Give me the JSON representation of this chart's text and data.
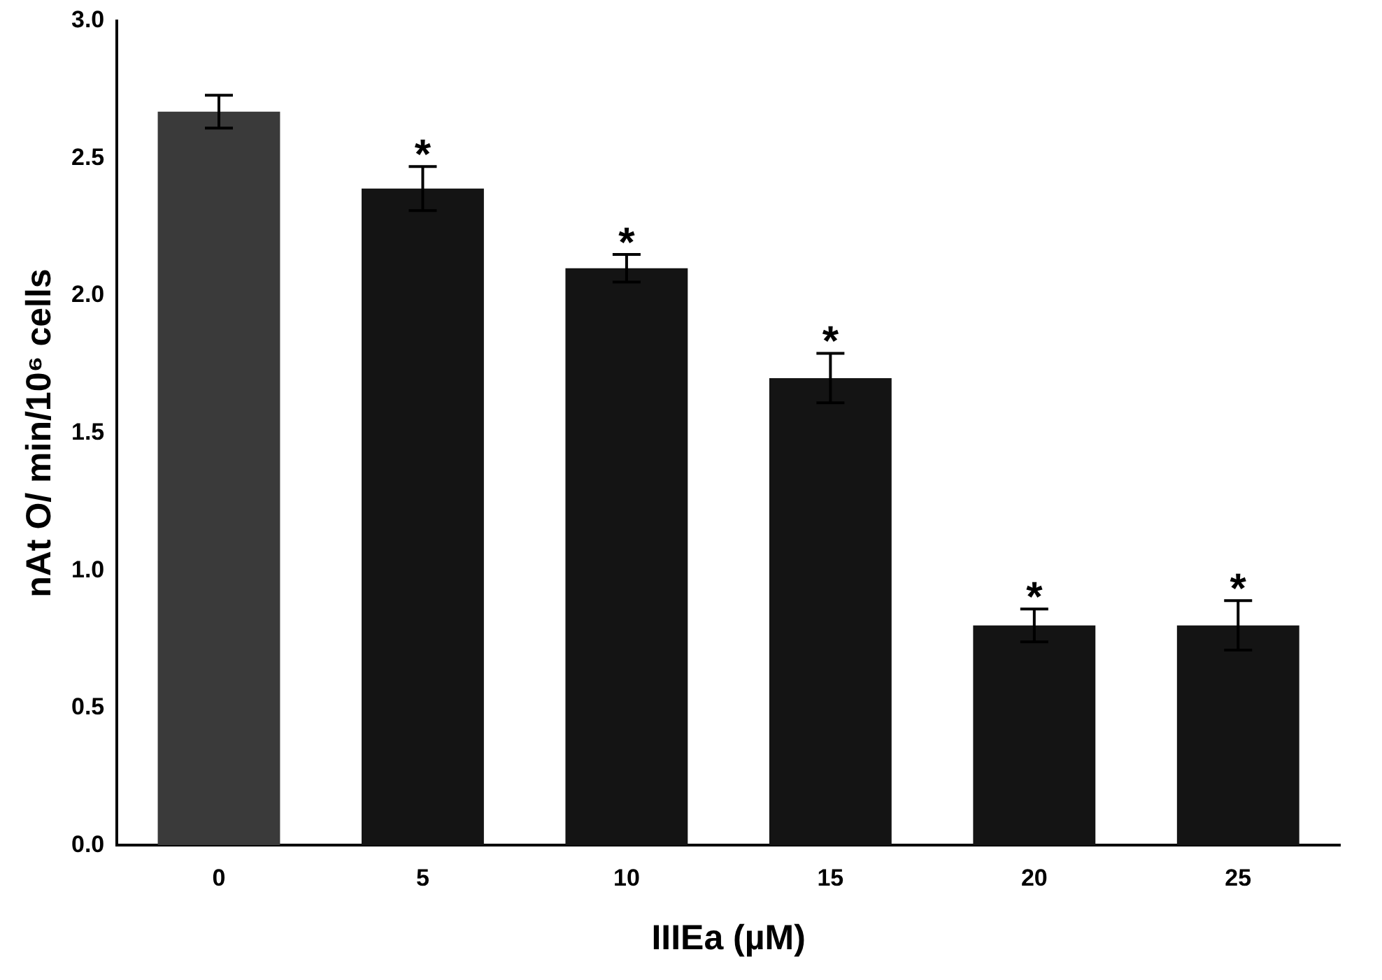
{
  "chart_data": {
    "type": "bar",
    "xlabel": "IIIEa (µM)",
    "ylabel": "nAt O/ min/10⁶ cells",
    "categories": [
      "0",
      "5",
      "10",
      "15",
      "20",
      "25"
    ],
    "values": [
      2.67,
      2.39,
      2.1,
      1.7,
      0.8,
      0.8
    ],
    "colors": [
      "#3a3a3a",
      "#141414",
      "#141414",
      "#141414",
      "#141414",
      "#141414"
    ],
    "errors": [
      0.06,
      0.08,
      0.05,
      0.09,
      0.06,
      0.09
    ],
    "ylim": [
      0,
      3
    ],
    "yticks": [
      {
        "value": 0,
        "label": "0.0"
      },
      {
        "value": 0.5,
        "label": "0.5"
      },
      {
        "value": 1,
        "label": "1.0"
      },
      {
        "value": 1.5,
        "label": "1.5"
      },
      {
        "value": 2,
        "label": "2.0"
      },
      {
        "value": 2.5,
        "label": "2.5"
      },
      {
        "value": 3,
        "label": "3.0"
      }
    ],
    "annotations": [
      {
        "text": "*",
        "x": "5",
        "y": 2.47
      },
      {
        "text": "*",
        "x": "10",
        "y": 2.15
      },
      {
        "text": "*",
        "x": "15",
        "y": 1.79
      },
      {
        "text": "*",
        "x": "20",
        "y": 0.86
      },
      {
        "text": "*",
        "x": "25",
        "y": 0.89
      }
    ],
    "grid": false,
    "legend": false
  }
}
